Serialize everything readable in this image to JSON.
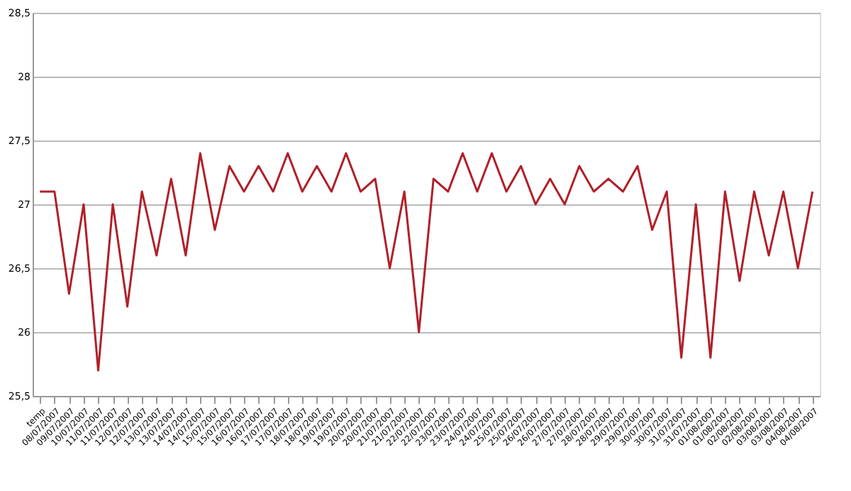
{
  "chart_data": {
    "type": "line",
    "categories": [
      "temp",
      "08/07/2007",
      "09/07/2007",
      "10/07/2007",
      "11/07/2007",
      "11/07/2007",
      "12/07/2007",
      "12/07/2007",
      "13/07/2007",
      "13/07/2007",
      "14/07/2007",
      "14/07/2007",
      "15/07/2007",
      "15/07/2007",
      "16/07/2007",
      "16/07/2007",
      "17/07/2007",
      "17/07/2007",
      "18/07/2007",
      "18/07/2007",
      "19/07/2007",
      "19/07/2007",
      "20/07/2007",
      "20/07/2007",
      "21/07/2007",
      "21/07/2007",
      "22/07/2007",
      "22/07/2007",
      "23/07/2007",
      "23/07/2007",
      "24/07/2007",
      "24/07/2007",
      "25/07/2007",
      "25/07/2007",
      "26/07/2007",
      "26/07/2007",
      "27/07/2007",
      "27/07/2007",
      "28/07/2007",
      "28/07/2007",
      "29/07/2007",
      "29/07/2007",
      "30/07/2007",
      "30/07/2007",
      "31/07/2007",
      "31/07/2007",
      "01/08/2007",
      "01/08/2007",
      "02/08/2007",
      "02/08/2007",
      "03/08/2007",
      "03/08/2007",
      "04/08/2007",
      "04/08/2007"
    ],
    "series": [
      {
        "color": "#b0202a",
        "values": [
          27.1,
          27.1,
          26.3,
          27.0,
          25.7,
          27.0,
          26.2,
          27.1,
          26.6,
          27.2,
          26.6,
          27.4,
          26.8,
          27.3,
          27.1,
          27.3,
          27.1,
          27.4,
          27.1,
          27.3,
          27.1,
          27.4,
          27.1,
          27.2,
          26.5,
          27.1,
          26.0,
          27.2,
          27.1,
          27.4,
          27.1,
          27.4,
          27.1,
          27.3,
          27.0,
          27.2,
          27.0,
          27.3,
          27.1,
          27.2,
          27.1,
          27.3,
          26.8,
          27.1,
          25.8,
          27.0,
          25.8,
          27.1,
          26.4,
          27.1,
          26.6,
          27.1,
          26.5,
          27.1
        ]
      }
    ],
    "ylim": [
      25.5,
      28.5
    ],
    "yticks": [
      {
        "value": 25.5,
        "label": "25,5"
      },
      {
        "value": 26,
        "label": "26"
      },
      {
        "value": 26.5,
        "label": "26,5"
      },
      {
        "value": 27,
        "label": "27"
      },
      {
        "value": 27.5,
        "label": "27,5"
      },
      {
        "value": 28,
        "label": "28"
      },
      {
        "value": 28.5,
        "label": "28,5"
      }
    ],
    "grid": "y",
    "legend": false,
    "marker": "none",
    "line_style": "solid"
  }
}
